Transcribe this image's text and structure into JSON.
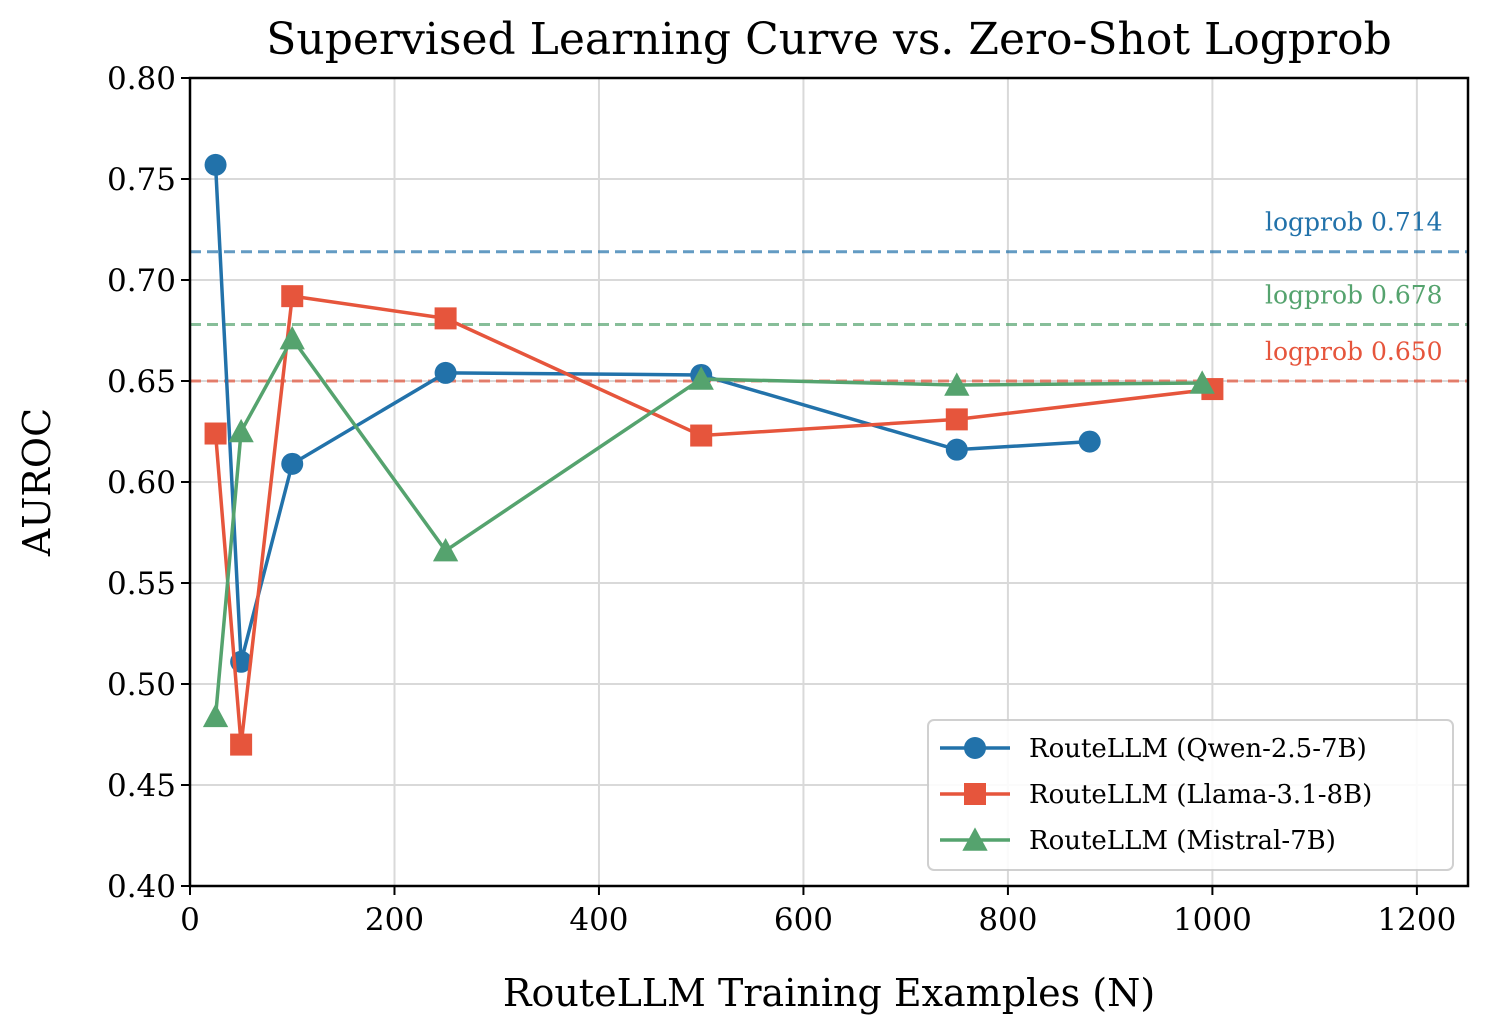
{
  "chart_data": {
    "type": "line",
    "title": "Supervised Learning Curve vs. Zero-Shot Logprob",
    "xlabel": "RouteLLM Training Examples (N)",
    "ylabel": "AUROC",
    "xlim": [
      0,
      1250
    ],
    "ylim": [
      0.4,
      0.8
    ],
    "xticks": [
      0,
      200,
      400,
      600,
      800,
      1000,
      1200
    ],
    "xtick_labels": [
      "0",
      "200",
      "400",
      "600",
      "800",
      "1000",
      "1200"
    ],
    "yticks": [
      0.4,
      0.45,
      0.5,
      0.55,
      0.6,
      0.65,
      0.7,
      0.75,
      0.8
    ],
    "ytick_labels": [
      "0.40",
      "0.45",
      "0.50",
      "0.55",
      "0.60",
      "0.65",
      "0.70",
      "0.75",
      "0.80"
    ],
    "grid": true,
    "legend_position": "lower-right",
    "series": [
      {
        "name": "RouteLLM (Qwen-2.5-7B)",
        "color": "#2272aa",
        "marker": "circle",
        "x": [
          25,
          50,
          100,
          250,
          500,
          750,
          880
        ],
        "y": [
          0.757,
          0.511,
          0.609,
          0.654,
          0.653,
          0.616,
          0.62
        ]
      },
      {
        "name": "RouteLLM (Llama-3.1-8B)",
        "color": "#e6553c",
        "marker": "square",
        "x": [
          25,
          50,
          100,
          250,
          500,
          750,
          1000
        ],
        "y": [
          0.624,
          0.47,
          0.692,
          0.681,
          0.623,
          0.631,
          0.646
        ]
      },
      {
        "name": "RouteLLM (Mistral-7B)",
        "color": "#55a36e",
        "marker": "triangle",
        "x": [
          25,
          50,
          100,
          250,
          500,
          750,
          990
        ],
        "y": [
          0.484,
          0.625,
          0.671,
          0.566,
          0.651,
          0.648,
          0.649
        ]
      }
    ],
    "reference_lines": [
      {
        "label": "logprob 0.714",
        "y": 0.714,
        "color": "#2272aa"
      },
      {
        "label": "logprob 0.678",
        "y": 0.678,
        "color": "#55a36e"
      },
      {
        "label": "logprob 0.650",
        "y": 0.65,
        "color": "#e6553c"
      }
    ]
  }
}
